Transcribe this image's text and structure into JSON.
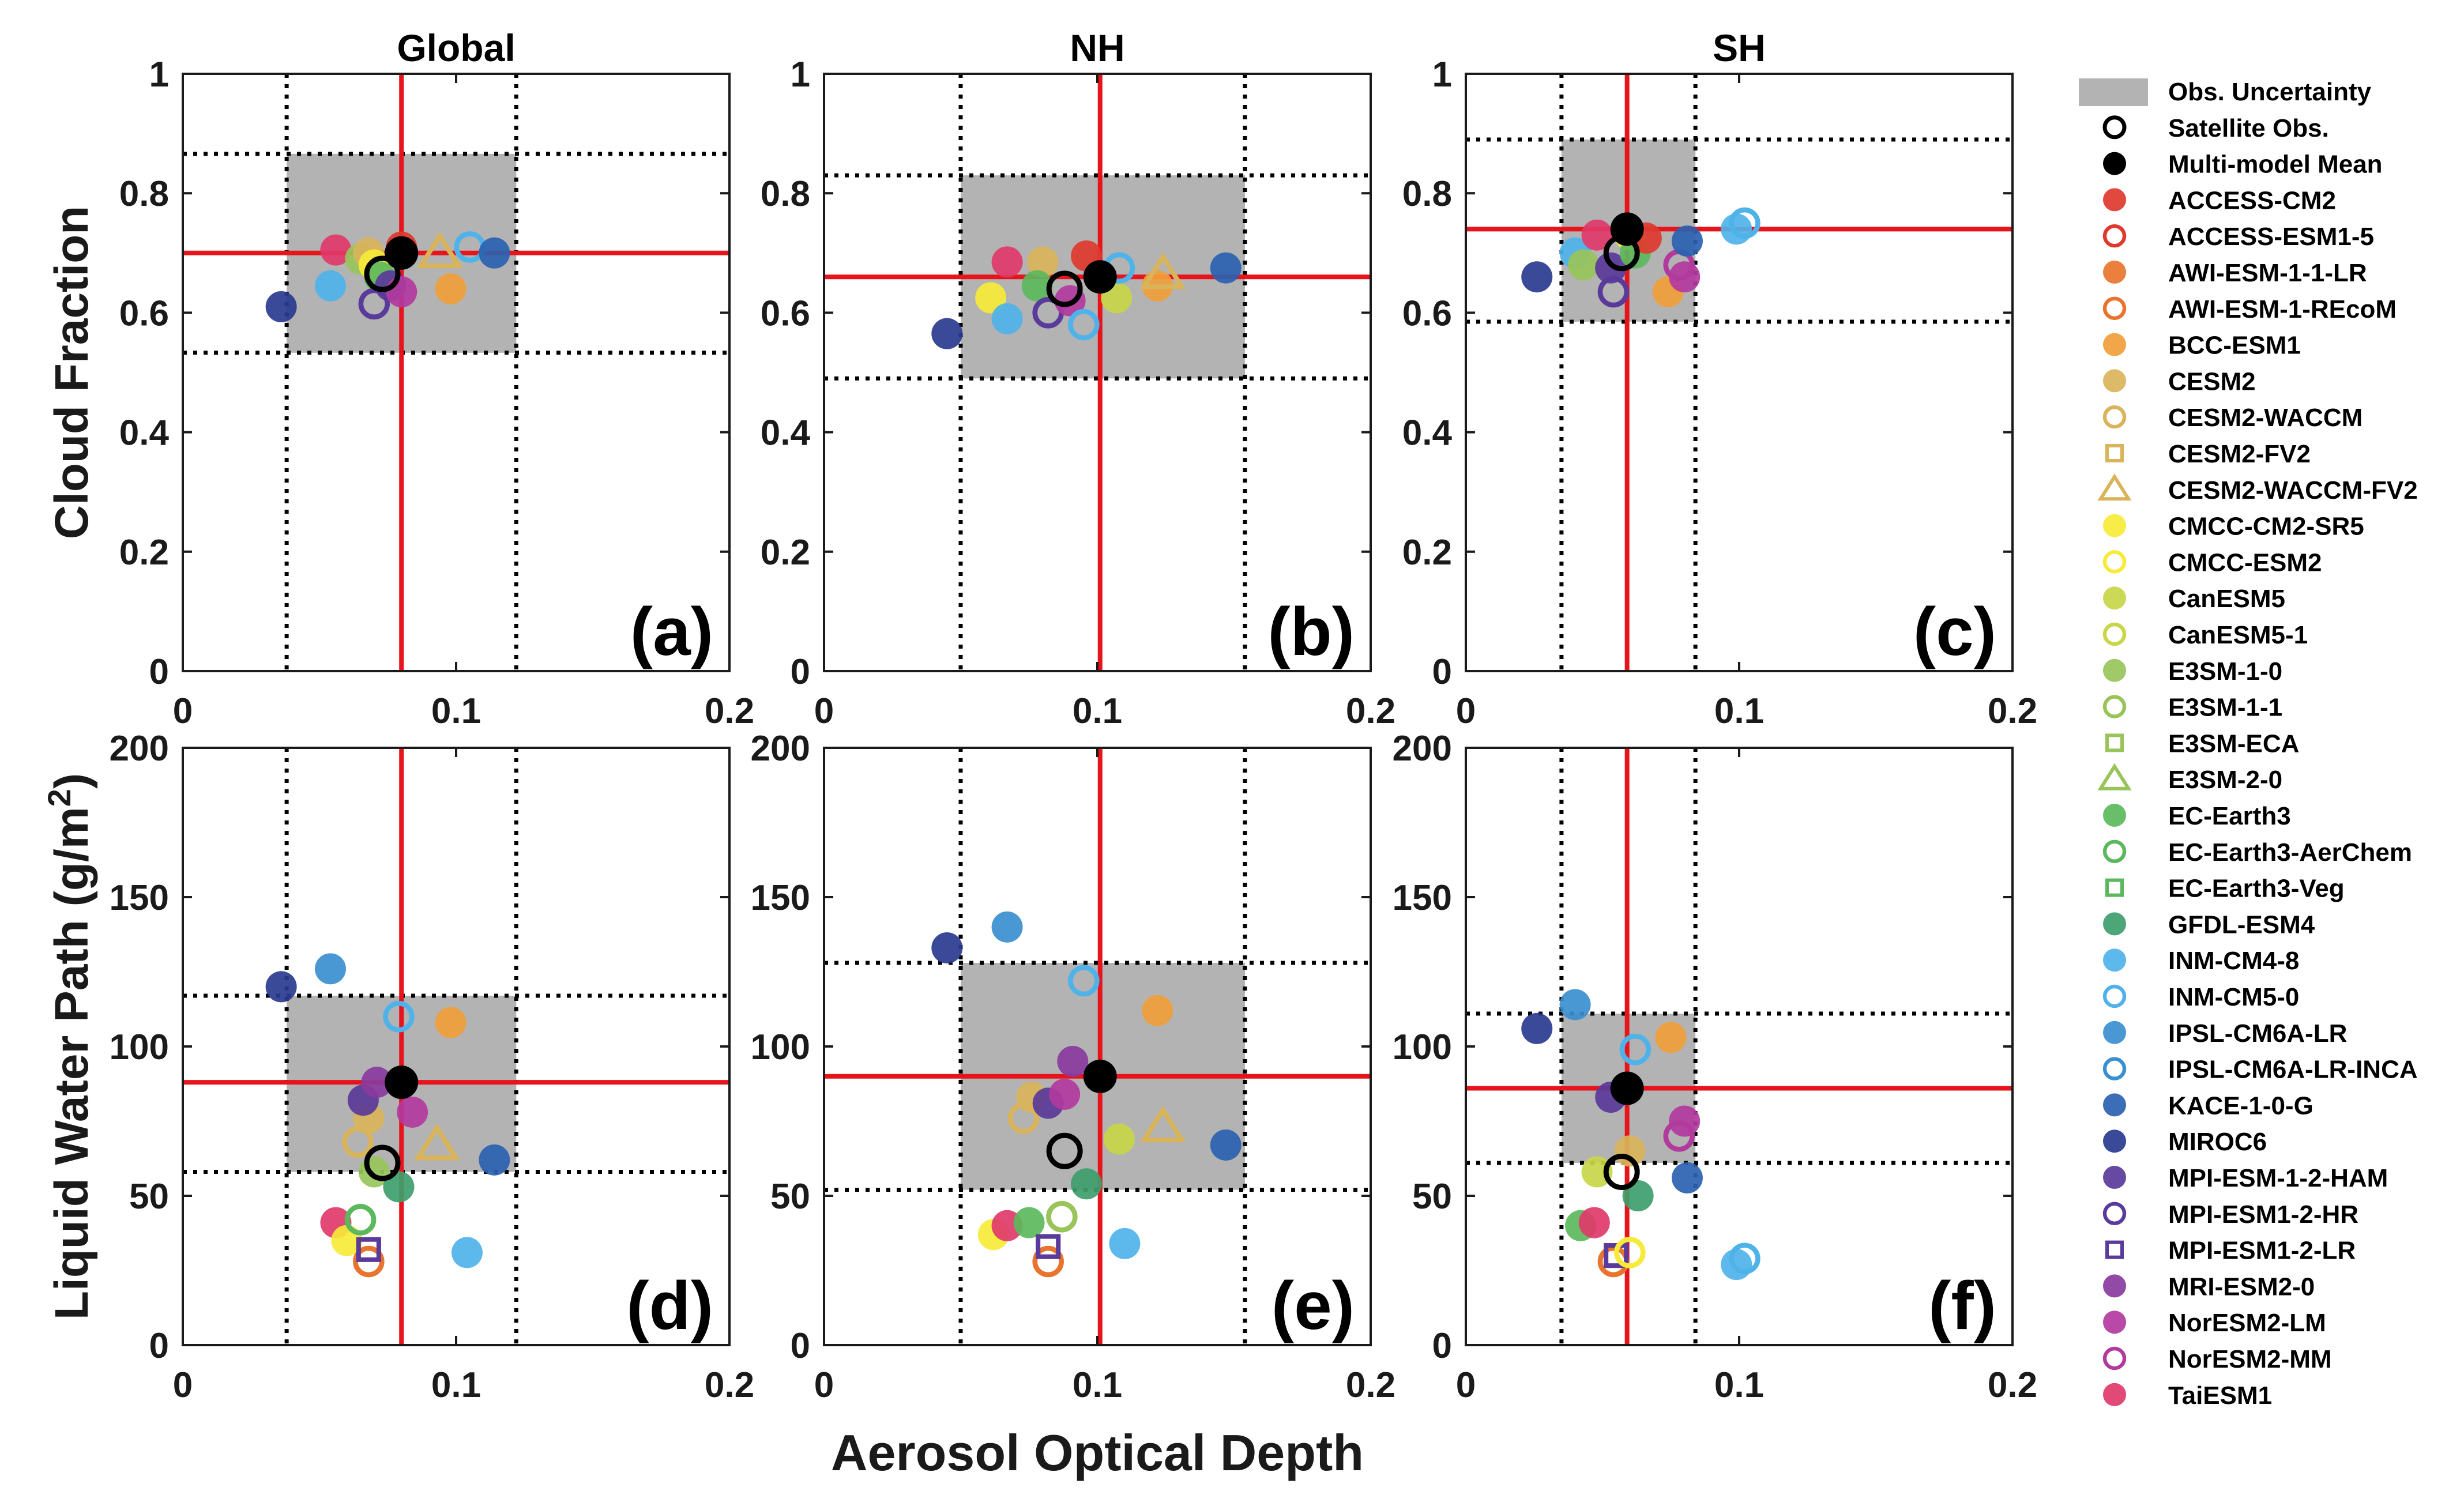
{
  "figure": {
    "xlabel": "Aerosol Optical Depth"
  },
  "legend": {
    "obs_uncertainty": "Obs. Uncertainty",
    "satellite_obs": "Satellite Obs.",
    "multi_model_mean": "Multi-model Mean",
    "models": [
      {
        "name": "ACCESS-CM2",
        "color": "#e03a2e",
        "marker": "filled-circle"
      },
      {
        "name": "ACCESS-ESM1-5",
        "color": "#e03a2e",
        "marker": "open-circle"
      },
      {
        "name": "AWI-ESM-1-1-LR",
        "color": "#e8742e",
        "marker": "filled-circle"
      },
      {
        "name": "AWI-ESM-1-REcoM",
        "color": "#e8742e",
        "marker": "open-circle"
      },
      {
        "name": "BCC-ESM1",
        "color": "#f0a03a",
        "marker": "filled-circle"
      },
      {
        "name": "CESM2",
        "color": "#d9b45a",
        "marker": "filled-circle"
      },
      {
        "name": "CESM2-WACCM",
        "color": "#d9b45a",
        "marker": "open-circle"
      },
      {
        "name": "CESM2-FV2",
        "color": "#d9b45a",
        "marker": "open-square"
      },
      {
        "name": "CESM2-WACCM-FV2",
        "color": "#d9b45a",
        "marker": "open-triangle"
      },
      {
        "name": "CMCC-CM2-SR5",
        "color": "#f7ea3a",
        "marker": "filled-circle"
      },
      {
        "name": "CMCC-ESM2",
        "color": "#f7ea3a",
        "marker": "open-circle"
      },
      {
        "name": "CanESM5",
        "color": "#c8d648",
        "marker": "filled-circle"
      },
      {
        "name": "CanESM5-1",
        "color": "#c8d648",
        "marker": "open-circle"
      },
      {
        "name": "E3SM-1-0",
        "color": "#98c45a",
        "marker": "filled-circle"
      },
      {
        "name": "E3SM-1-1",
        "color": "#98c45a",
        "marker": "open-circle"
      },
      {
        "name": "E3SM-ECA",
        "color": "#98c45a",
        "marker": "open-square"
      },
      {
        "name": "E3SM-2-0",
        "color": "#98c45a",
        "marker": "open-triangle"
      },
      {
        "name": "EC-Earth3",
        "color": "#5cb85c",
        "marker": "filled-circle"
      },
      {
        "name": "EC-Earth3-AerChem",
        "color": "#5cb85c",
        "marker": "open-circle"
      },
      {
        "name": "EC-Earth3-Veg",
        "color": "#5cb85c",
        "marker": "open-square"
      },
      {
        "name": "GFDL-ESM4",
        "color": "#3e9e6c",
        "marker": "filled-circle"
      },
      {
        "name": "INM-CM4-8",
        "color": "#4fb3ea",
        "marker": "filled-circle"
      },
      {
        "name": "INM-CM5-0",
        "color": "#4fb3ea",
        "marker": "open-circle"
      },
      {
        "name": "IPSL-CM6A-LR",
        "color": "#3a8fd0",
        "marker": "filled-circle"
      },
      {
        "name": "IPSL-CM6A-LR-INCA",
        "color": "#3a8fd0",
        "marker": "open-circle"
      },
      {
        "name": "KACE-1-0-G",
        "color": "#2a62b0",
        "marker": "filled-circle"
      },
      {
        "name": "MIROC6",
        "color": "#2a3a90",
        "marker": "filled-circle"
      },
      {
        "name": "MPI-ESM-1-2-HAM",
        "color": "#5a3a9a",
        "marker": "filled-circle"
      },
      {
        "name": "MPI-ESM1-2-HR",
        "color": "#5a3a9a",
        "marker": "open-circle"
      },
      {
        "name": "MPI-ESM1-2-LR",
        "color": "#5a3a9a",
        "marker": "open-square"
      },
      {
        "name": "MRI-ESM2-0",
        "color": "#8a3a9e",
        "marker": "filled-circle"
      },
      {
        "name": "NorESM2-LM",
        "color": "#b23a9e",
        "marker": "filled-circle"
      },
      {
        "name": "NorESM2-MM",
        "color": "#b23a9e",
        "marker": "open-circle"
      },
      {
        "name": "TaiESM1",
        "color": "#e03a6a",
        "marker": "filled-circle"
      }
    ]
  },
  "chart_data": [
    {
      "type": "scatter",
      "panel": "(a)",
      "title": "Global",
      "xlabel": "",
      "ylabel": "Cloud Fraction",
      "xlim": [
        0,
        0.2
      ],
      "ylim": [
        0,
        1
      ],
      "xticks": [
        "0",
        "0.1",
        "0.2"
      ],
      "yticks": [
        "0",
        "0.2",
        "0.4",
        "0.6",
        "0.8",
        "1"
      ],
      "obs": {
        "x": 0.073,
        "y": 0.665,
        "x_range": [
          0.038,
          0.122
        ],
        "y_range": [
          0.533,
          0.866
        ]
      },
      "mean": {
        "x": 0.08,
        "y": 0.7
      },
      "points": [
        {
          "model": "MIROC6",
          "x": 0.036,
          "y": 0.61
        },
        {
          "model": "INM-CM4-8",
          "x": 0.054,
          "y": 0.645
        },
        {
          "model": "TaiESM1",
          "x": 0.056,
          "y": 0.705
        },
        {
          "model": "E3SM-1-0",
          "x": 0.065,
          "y": 0.69
        },
        {
          "model": "CESM2",
          "x": 0.068,
          "y": 0.7
        },
        {
          "model": "CMCC-CM2-SR5",
          "x": 0.07,
          "y": 0.68
        },
        {
          "model": "EC-Earth3",
          "x": 0.072,
          "y": 0.66
        },
        {
          "model": "MPI-ESM1-2-HR",
          "x": 0.07,
          "y": 0.615
        },
        {
          "model": "MPI-ESM-1-2-HAM",
          "x": 0.076,
          "y": 0.645
        },
        {
          "model": "NorESM2-LM",
          "x": 0.08,
          "y": 0.635
        },
        {
          "model": "ACCESS-CM2",
          "x": 0.08,
          "y": 0.71
        },
        {
          "model": "CESM2-WACCM-FV2",
          "x": 0.094,
          "y": 0.7
        },
        {
          "model": "BCC-ESM1",
          "x": 0.098,
          "y": 0.64
        },
        {
          "model": "INM-CM5-0",
          "x": 0.105,
          "y": 0.71
        },
        {
          "model": "KACE-1-0-G",
          "x": 0.114,
          "y": 0.7
        }
      ]
    },
    {
      "type": "scatter",
      "panel": "(b)",
      "title": "NH",
      "xlabel": "",
      "ylabel": "",
      "xlim": [
        0,
        0.2
      ],
      "ylim": [
        0,
        1
      ],
      "xticks": [
        "0",
        "0.1",
        "0.2"
      ],
      "yticks": [
        "0",
        "0.2",
        "0.4",
        "0.6",
        "0.8",
        "1"
      ],
      "obs": {
        "x": 0.088,
        "y": 0.64,
        "x_range": [
          0.05,
          0.154
        ],
        "y_range": [
          0.49,
          0.83
        ]
      },
      "mean": {
        "x": 0.101,
        "y": 0.66
      },
      "points": [
        {
          "model": "MIROC6",
          "x": 0.045,
          "y": 0.565
        },
        {
          "model": "CMCC-CM2-SR5",
          "x": 0.061,
          "y": 0.625
        },
        {
          "model": "INM-CM4-8",
          "x": 0.067,
          "y": 0.59
        },
        {
          "model": "TaiESM1",
          "x": 0.067,
          "y": 0.685
        },
        {
          "model": "CESM2",
          "x": 0.08,
          "y": 0.685
        },
        {
          "model": "EC-Earth3",
          "x": 0.078,
          "y": 0.645
        },
        {
          "model": "MPI-ESM1-2-HR",
          "x": 0.082,
          "y": 0.6
        },
        {
          "model": "NorESM2-LM",
          "x": 0.09,
          "y": 0.62
        },
        {
          "model": "ACCESS-CM2",
          "x": 0.096,
          "y": 0.695
        },
        {
          "model": "INM-CM5-0",
          "x": 0.095,
          "y": 0.58
        },
        {
          "model": "CanESM5",
          "x": 0.107,
          "y": 0.625
        },
        {
          "model": "INM-CM5-0",
          "x": 0.108,
          "y": 0.675
        },
        {
          "model": "BCC-ESM1",
          "x": 0.122,
          "y": 0.645
        },
        {
          "model": "CESM2-WACCM-FV2",
          "x": 0.124,
          "y": 0.665
        },
        {
          "model": "KACE-1-0-G",
          "x": 0.147,
          "y": 0.675
        }
      ]
    },
    {
      "type": "scatter",
      "panel": "(c)",
      "title": "SH",
      "xlabel": "",
      "ylabel": "",
      "xlim": [
        0,
        0.2
      ],
      "ylim": [
        0,
        1
      ],
      "xticks": [
        "0",
        "0.1",
        "0.2"
      ],
      "yticks": [
        "0",
        "0.2",
        "0.4",
        "0.6",
        "0.8",
        "1"
      ],
      "obs": {
        "x": 0.057,
        "y": 0.7,
        "x_range": [
          0.035,
          0.084
        ],
        "y_range": [
          0.585,
          0.89
        ]
      },
      "mean": {
        "x": 0.059,
        "y": 0.74
      },
      "points": [
        {
          "model": "MIROC6",
          "x": 0.026,
          "y": 0.66
        },
        {
          "model": "INM-CM4-8",
          "x": 0.04,
          "y": 0.7
        },
        {
          "model": "E3SM-1-0",
          "x": 0.043,
          "y": 0.68
        },
        {
          "model": "TaiESM1",
          "x": 0.048,
          "y": 0.73
        },
        {
          "model": "MPI-ESM1-2-HR",
          "x": 0.054,
          "y": 0.635
        },
        {
          "model": "MPI-ESM-1-2-HAM",
          "x": 0.053,
          "y": 0.675
        },
        {
          "model": "CMCC-CM2-SR5",
          "x": 0.06,
          "y": 0.73
        },
        {
          "model": "EC-Earth3",
          "x": 0.062,
          "y": 0.7
        },
        {
          "model": "ACCESS-CM2",
          "x": 0.066,
          "y": 0.725
        },
        {
          "model": "BCC-ESM1",
          "x": 0.074,
          "y": 0.635
        },
        {
          "model": "NorESM2-MM",
          "x": 0.078,
          "y": 0.68
        },
        {
          "model": "NorESM2-LM",
          "x": 0.08,
          "y": 0.66
        },
        {
          "model": "KACE-1-0-G",
          "x": 0.081,
          "y": 0.72
        },
        {
          "model": "INM-CM4-8",
          "x": 0.099,
          "y": 0.74
        },
        {
          "model": "INM-CM5-0",
          "x": 0.102,
          "y": 0.75
        }
      ]
    },
    {
      "type": "scatter",
      "panel": "(d)",
      "title": "",
      "xlabel": "",
      "ylabel": "Liquid Water Path (g/m2)",
      "xlim": [
        0,
        0.2
      ],
      "ylim": [
        0,
        200
      ],
      "xticks": [
        "0",
        "0.1",
        "0.2"
      ],
      "yticks": [
        "0",
        "50",
        "100",
        "150",
        "200"
      ],
      "obs": {
        "x": 0.073,
        "y": 61,
        "x_range": [
          0.038,
          0.122
        ],
        "y_range": [
          58,
          117
        ]
      },
      "mean": {
        "x": 0.08,
        "y": 88
      },
      "points": [
        {
          "model": "MIROC6",
          "x": 0.036,
          "y": 120
        },
        {
          "model": "IPSL-CM6A-LR",
          "x": 0.054,
          "y": 126
        },
        {
          "model": "TaiESM1",
          "x": 0.056,
          "y": 41
        },
        {
          "model": "CMCC-CM2-SR5",
          "x": 0.06,
          "y": 35
        },
        {
          "model": "EC-Earth3-AerChem",
          "x": 0.065,
          "y": 42
        },
        {
          "model": "AWI-ESM-1-REcoM",
          "x": 0.068,
          "y": 28
        },
        {
          "model": "MPI-ESM1-2-LR",
          "x": 0.068,
          "y": 32
        },
        {
          "model": "CESM2-WACCM",
          "x": 0.064,
          "y": 68
        },
        {
          "model": "CESM2",
          "x": 0.068,
          "y": 76
        },
        {
          "model": "MPI-ESM-1-2-HAM",
          "x": 0.066,
          "y": 82
        },
        {
          "model": "MRI-ESM2-0",
          "x": 0.071,
          "y": 88
        },
        {
          "model": "E3SM-1-0",
          "x": 0.07,
          "y": 58
        },
        {
          "model": "GFDL-ESM4",
          "x": 0.079,
          "y": 53
        },
        {
          "model": "INM-CM5-0",
          "x": 0.079,
          "y": 110
        },
        {
          "model": "NorESM2-LM",
          "x": 0.084,
          "y": 78
        },
        {
          "model": "CESM2-WACCM-FV2",
          "x": 0.093,
          "y": 67
        },
        {
          "model": "BCC-ESM1",
          "x": 0.098,
          "y": 108
        },
        {
          "model": "INM-CM4-8",
          "x": 0.104,
          "y": 31
        },
        {
          "model": "KACE-1-0-G",
          "x": 0.114,
          "y": 62
        }
      ]
    },
    {
      "type": "scatter",
      "panel": "(e)",
      "title": "",
      "xlabel": "",
      "ylabel": "",
      "xlim": [
        0,
        0.2
      ],
      "ylim": [
        0,
        200
      ],
      "xticks": [
        "0",
        "0.1",
        "0.2"
      ],
      "yticks": [
        "0",
        "50",
        "100",
        "150",
        "200"
      ],
      "obs": {
        "x": 0.088,
        "y": 65,
        "x_range": [
          0.05,
          0.154
        ],
        "y_range": [
          52,
          128
        ]
      },
      "mean": {
        "x": 0.101,
        "y": 90
      },
      "points": [
        {
          "model": "MIROC6",
          "x": 0.045,
          "y": 133
        },
        {
          "model": "IPSL-CM6A-LR",
          "x": 0.067,
          "y": 140
        },
        {
          "model": "CMCC-CM2-SR5",
          "x": 0.062,
          "y": 37
        },
        {
          "model": "TaiESM1",
          "x": 0.067,
          "y": 40
        },
        {
          "model": "EC-Earth3",
          "x": 0.075,
          "y": 41
        },
        {
          "model": "E3SM-1-1",
          "x": 0.087,
          "y": 43
        },
        {
          "model": "AWI-ESM-1-REcoM",
          "x": 0.082,
          "y": 28
        },
        {
          "model": "MPI-ESM1-2-LR",
          "x": 0.082,
          "y": 33
        },
        {
          "model": "CESM2-WACCM",
          "x": 0.073,
          "y": 76
        },
        {
          "model": "CESM2",
          "x": 0.076,
          "y": 83
        },
        {
          "model": "MPI-ESM-1-2-HAM",
          "x": 0.082,
          "y": 81
        },
        {
          "model": "NorESM2-LM",
          "x": 0.088,
          "y": 84
        },
        {
          "model": "MRI-ESM2-0",
          "x": 0.091,
          "y": 95
        },
        {
          "model": "INM-CM5-0",
          "x": 0.095,
          "y": 122
        },
        {
          "model": "GFDL-ESM4",
          "x": 0.096,
          "y": 54
        },
        {
          "model": "CanESM5",
          "x": 0.108,
          "y": 69
        },
        {
          "model": "INM-CM4-8",
          "x": 0.11,
          "y": 34
        },
        {
          "model": "BCC-ESM1",
          "x": 0.122,
          "y": 112
        },
        {
          "model": "CESM2-WACCM-FV2",
          "x": 0.124,
          "y": 73
        },
        {
          "model": "KACE-1-0-G",
          "x": 0.147,
          "y": 67
        }
      ]
    },
    {
      "type": "scatter",
      "panel": "(f)",
      "title": "",
      "xlabel": "",
      "ylabel": "",
      "xlim": [
        0,
        0.2
      ],
      "ylim": [
        0,
        200
      ],
      "xticks": [
        "0",
        "0.1",
        "0.2"
      ],
      "yticks": [
        "0",
        "50",
        "100",
        "150",
        "200"
      ],
      "obs": {
        "x": 0.057,
        "y": 58,
        "x_range": [
          0.035,
          0.084
        ],
        "y_range": [
          61,
          111
        ]
      },
      "mean": {
        "x": 0.059,
        "y": 86
      },
      "points": [
        {
          "model": "MIROC6",
          "x": 0.026,
          "y": 106
        },
        {
          "model": "IPSL-CM6A-LR",
          "x": 0.04,
          "y": 114
        },
        {
          "model": "EC-Earth3",
          "x": 0.042,
          "y": 40
        },
        {
          "model": "TaiESM1",
          "x": 0.047,
          "y": 41
        },
        {
          "model": "CanESM5",
          "x": 0.048,
          "y": 58
        },
        {
          "model": "AWI-ESM-1-REcoM",
          "x": 0.054,
          "y": 28
        },
        {
          "model": "MPI-ESM1-2-LR",
          "x": 0.055,
          "y": 30
        },
        {
          "model": "CMCC-ESM2",
          "x": 0.06,
          "y": 31
        },
        {
          "model": "MPI-ESM-1-2-HAM",
          "x": 0.053,
          "y": 83
        },
        {
          "model": "CESM2",
          "x": 0.06,
          "y": 65
        },
        {
          "model": "GFDL-ESM4",
          "x": 0.063,
          "y": 50
        },
        {
          "model": "INM-CM5-0",
          "x": 0.062,
          "y": 99
        },
        {
          "model": "BCC-ESM1",
          "x": 0.075,
          "y": 103
        },
        {
          "model": "NorESM2-MM",
          "x": 0.078,
          "y": 70
        },
        {
          "model": "NorESM2-LM",
          "x": 0.08,
          "y": 75
        },
        {
          "model": "KACE-1-0-G",
          "x": 0.081,
          "y": 56
        },
        {
          "model": "INM-CM4-8",
          "x": 0.099,
          "y": 27
        },
        {
          "model": "INM-CM5-0",
          "x": 0.102,
          "y": 29
        }
      ]
    }
  ]
}
